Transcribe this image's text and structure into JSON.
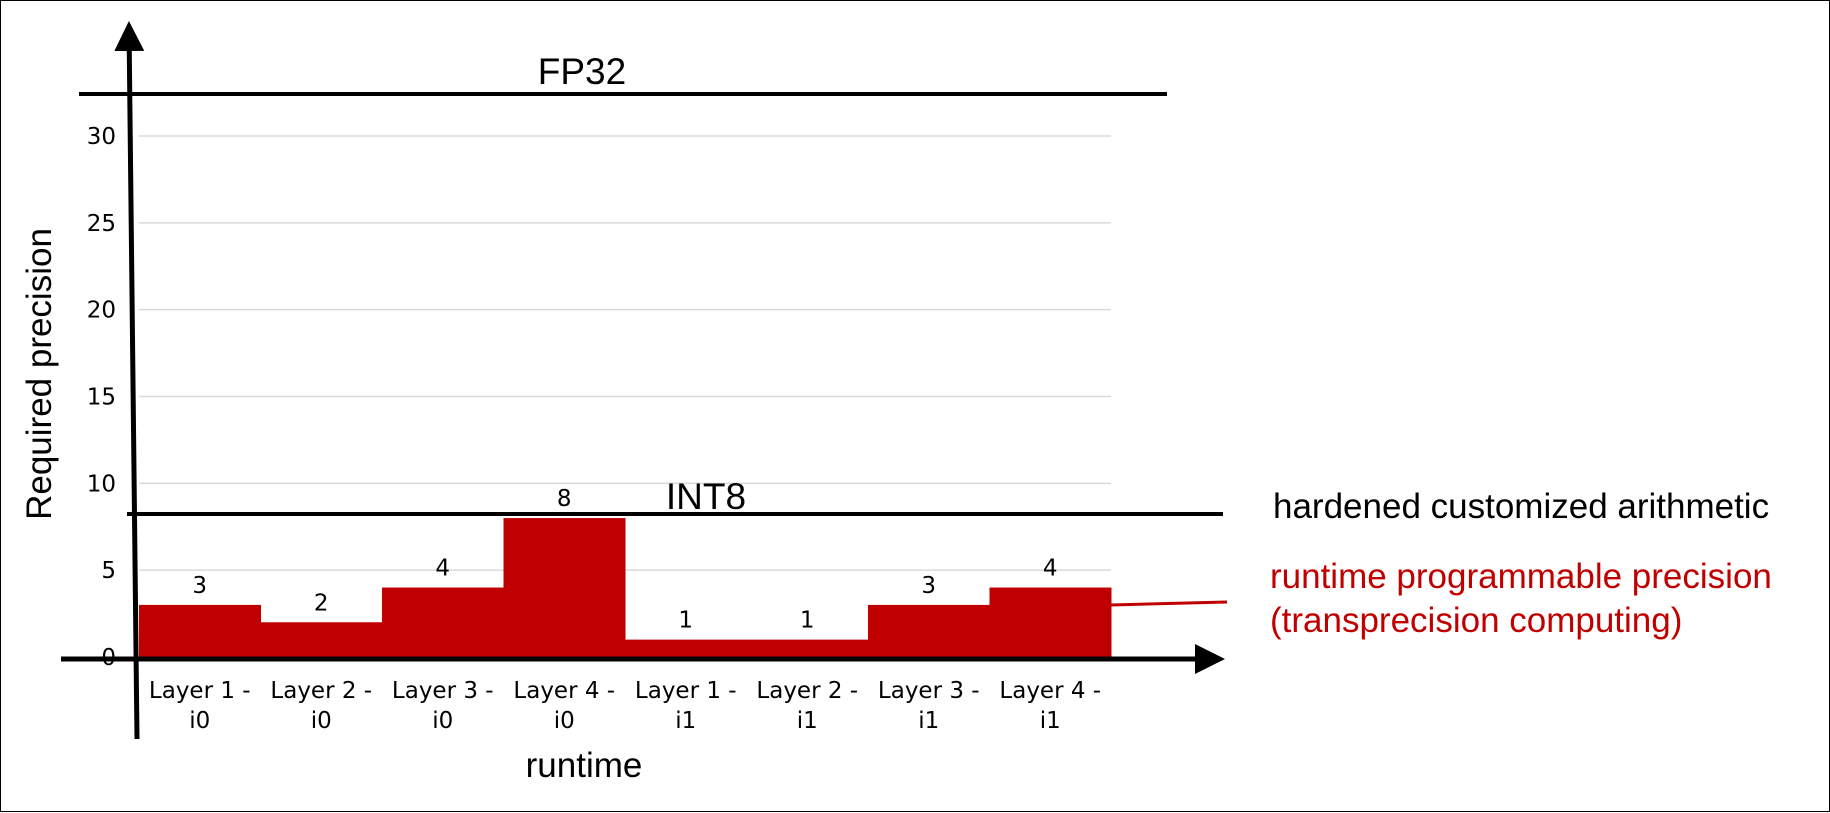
{
  "chart_data": {
    "type": "step-area",
    "title": "",
    "xlabel": "runtime",
    "ylabel": "Required precision",
    "categories": [
      [
        "Layer 1 -",
        "i0"
      ],
      [
        "Layer 2 -",
        "i0"
      ],
      [
        "Layer 3 -",
        "i0"
      ],
      [
        "Layer 4 -",
        "i0"
      ],
      [
        "Layer 1 -",
        "i1"
      ],
      [
        "Layer 2 -",
        "i1"
      ],
      [
        "Layer 3 -",
        "i1"
      ],
      [
        "Layer 4 -",
        "i1"
      ]
    ],
    "values": [
      3,
      2,
      4,
      8,
      1,
      1,
      3,
      4
    ],
    "ylim": [
      0,
      32
    ],
    "yticks": [
      0,
      5,
      10,
      15,
      20,
      25,
      30
    ],
    "grid": true,
    "fill_color": "#c00000",
    "reference_lines": [
      {
        "label": "FP32",
        "value": 32
      },
      {
        "label": "INT8",
        "value": 8.2
      }
    ],
    "annotations": {
      "hardened": "hardened customized arithmetic",
      "runtime_line1": "runtime programmable precision",
      "runtime_line2": "(transprecision computing)",
      "runtime_color": "#c00000"
    }
  }
}
